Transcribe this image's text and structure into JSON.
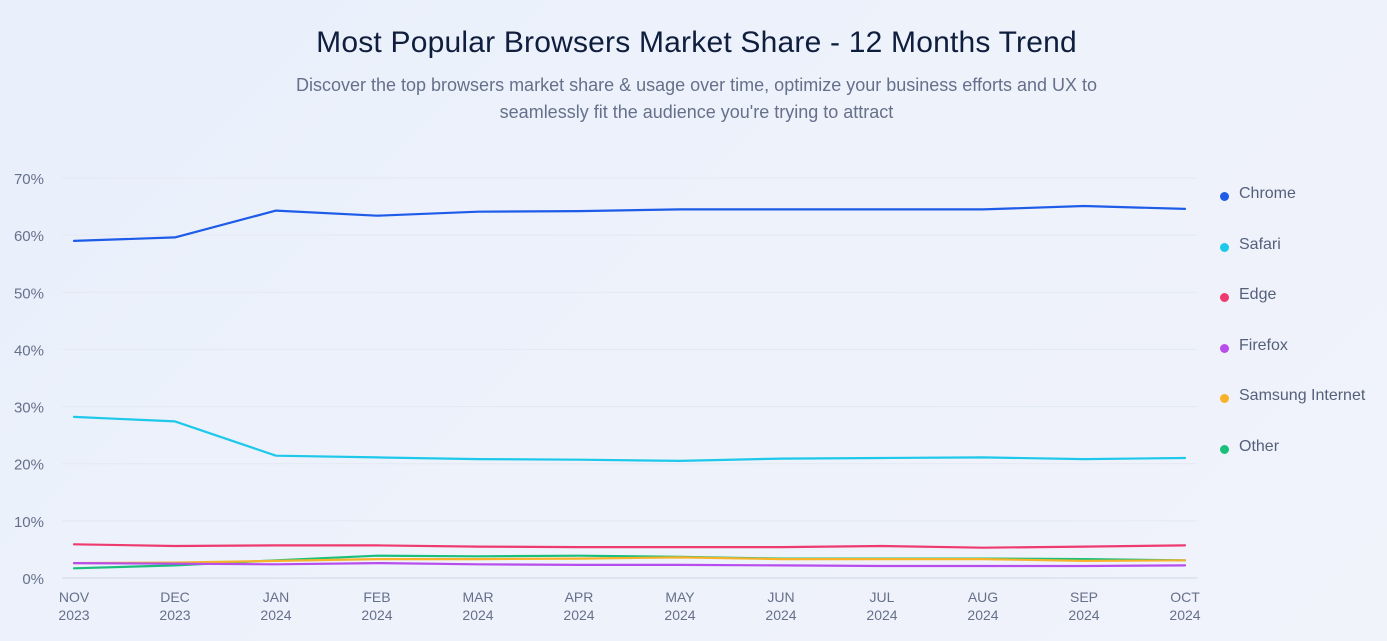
{
  "title": "Most Popular Browsers Market Share - 12 Months Trend",
  "subtitle_lines": [
    "Discover the top browsers market share & usage over time, optimize your business efforts and UX to",
    "seamlessly fit the audience you're trying to attract"
  ],
  "chart_data": {
    "type": "line",
    "title": "Most Popular Browsers Market Share - 12 Months Trend",
    "x": [
      [
        "NOV",
        "2023"
      ],
      [
        "DEC",
        "2023"
      ],
      [
        "JAN",
        "2024"
      ],
      [
        "FEB",
        "2024"
      ],
      [
        "MAR",
        "2024"
      ],
      [
        "APR",
        "2024"
      ],
      [
        "MAY",
        "2024"
      ],
      [
        "JUN",
        "2024"
      ],
      [
        "JUL",
        "2024"
      ],
      [
        "AUG",
        "2024"
      ],
      [
        "SEP",
        "2024"
      ],
      [
        "OCT",
        "2024"
      ]
    ],
    "y_ticks": [
      "0%",
      "10%",
      "20%",
      "30%",
      "40%",
      "50%",
      "60%",
      "70%"
    ],
    "ylim": [
      0,
      70
    ],
    "grid": true,
    "legend_position": "right",
    "series": [
      {
        "name": "Chrome",
        "color": "#1d5be8",
        "values": [
          59.0,
          59.6,
          64.3,
          63.4,
          64.1,
          64.2,
          64.5,
          64.5,
          64.5,
          64.5,
          65.1,
          64.6
        ]
      },
      {
        "name": "Safari",
        "color": "#1ec8ea",
        "values": [
          28.2,
          27.4,
          21.4,
          21.1,
          20.8,
          20.7,
          20.5,
          20.9,
          21.0,
          21.1,
          20.8,
          21.0
        ]
      },
      {
        "name": "Edge",
        "color": "#ee3a6e",
        "values": [
          5.9,
          5.6,
          5.7,
          5.7,
          5.5,
          5.4,
          5.4,
          5.4,
          5.6,
          5.3,
          5.5,
          5.7
        ]
      },
      {
        "name": "Firefox",
        "color": "#b84ded",
        "values": [
          2.6,
          2.5,
          2.4,
          2.6,
          2.4,
          2.3,
          2.3,
          2.2,
          2.1,
          2.1,
          2.1,
          2.2
        ]
      },
      {
        "name": "Samsung Internet",
        "color": "#f8b22a",
        "values": [
          2.6,
          2.7,
          3.0,
          3.3,
          3.3,
          3.4,
          3.6,
          3.3,
          3.3,
          3.3,
          3.0,
          3.1
        ]
      },
      {
        "name": "Other",
        "color": "#1bbf7c",
        "values": [
          1.7,
          2.2,
          3.1,
          3.9,
          3.8,
          3.9,
          3.7,
          3.4,
          3.4,
          3.4,
          3.3,
          3.1
        ]
      }
    ]
  }
}
